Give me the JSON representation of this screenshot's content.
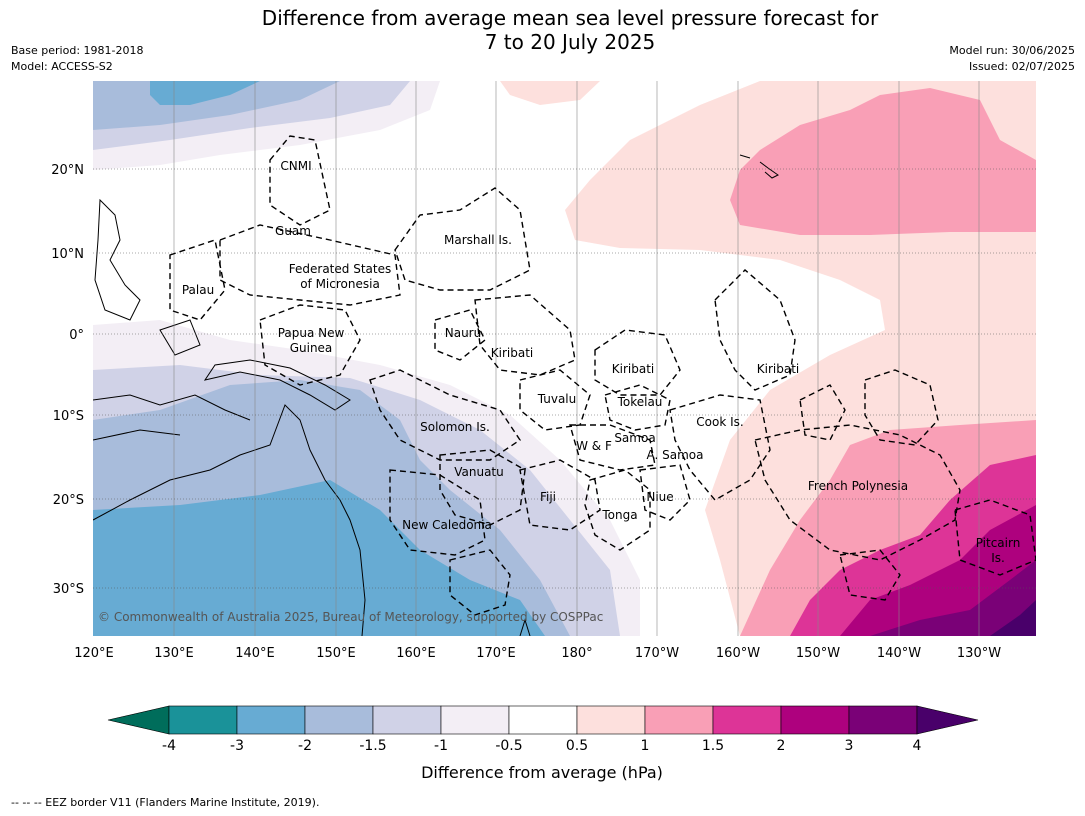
{
  "title_line1": "Difference from average mean sea level pressure forecast for",
  "title_line2": "7 to 20 July 2025",
  "base_period": "Base period: 1981-2018",
  "model": "Model: ACCESS-S2",
  "model_run": "Model run: 30/06/2025",
  "issued": "Issued: 02/07/2025",
  "copyright": "© Commonwealth of Australia 2025, Bureau of Meteorology, supported by COSPPac",
  "footer": "--  --  -- EEZ border V11 (Flanders Marine Institute, 2019).",
  "lat_labels": [
    "20°N",
    "10°N",
    "0°",
    "10°S",
    "20°S",
    "30°S"
  ],
  "lon_labels": [
    "120°E",
    "130°E",
    "140°E",
    "150°E",
    "160°E",
    "170°E",
    "180°",
    "170°W",
    "160°W",
    "150°W",
    "140°W",
    "130°W"
  ],
  "places": {
    "cnmi": "CNMI",
    "guam": "Guam",
    "marshall": "Marshall Is.",
    "fsm1": "Federated States",
    "fsm2": "of Micronesia",
    "palau": "Palau",
    "png1": "Papua New",
    "png2": "Guinea",
    "nauru": "Nauru",
    "kiribati_w": "Kiribati",
    "kiribati_c": "Kiribati",
    "kiribati_e": "Kiribati",
    "tuvalu": "Tuvalu",
    "tokelau": "Tokelau",
    "cook": "Cook Is.",
    "solomon": "Solomon Is.",
    "samoa": "Samoa",
    "wf": "W & F",
    "asamoa": "A. Samoa",
    "vanuatu": "Vanuatu",
    "fiji": "Fiji",
    "niue": "Niue",
    "tonga": "Tonga",
    "newcal": "New Caledonia",
    "fpoly": "French Polynesia",
    "pitcairn1": "Pitcairn",
    "pitcairn2": "Is."
  },
  "colorbar": {
    "title": "Difference from average (hPa)",
    "ticks": [
      "-4",
      "-3",
      "-2",
      "-1.5",
      "-1",
      "-0.5",
      "0.5",
      "1",
      "1.5",
      "2",
      "3",
      "4"
    ],
    "colors": [
      "#1a9299",
      "#67abd3",
      "#a8bcdb",
      "#d0d2e7",
      "#f3eef5",
      "#ffffff",
      "#fde0dd",
      "#f99fb6",
      "#dd3497",
      "#ae017e",
      "#7a0177"
    ],
    "under_color": "#006d5b",
    "over_color": "#49006a"
  },
  "levels": {
    "neg_4": "#1a9299",
    "neg_3": "#67abd3",
    "neg_2": "#a8bcdb",
    "neg_1_5": "#d0d2e7",
    "neg_1": "#f3eef5",
    "pos_0_5": "#fde0dd",
    "pos_1": "#f99fb6",
    "pos_1_5": "#dd3497",
    "pos_2": "#ae017e",
    "pos_3": "#7a0177",
    "pos_4": "#49006a"
  }
}
